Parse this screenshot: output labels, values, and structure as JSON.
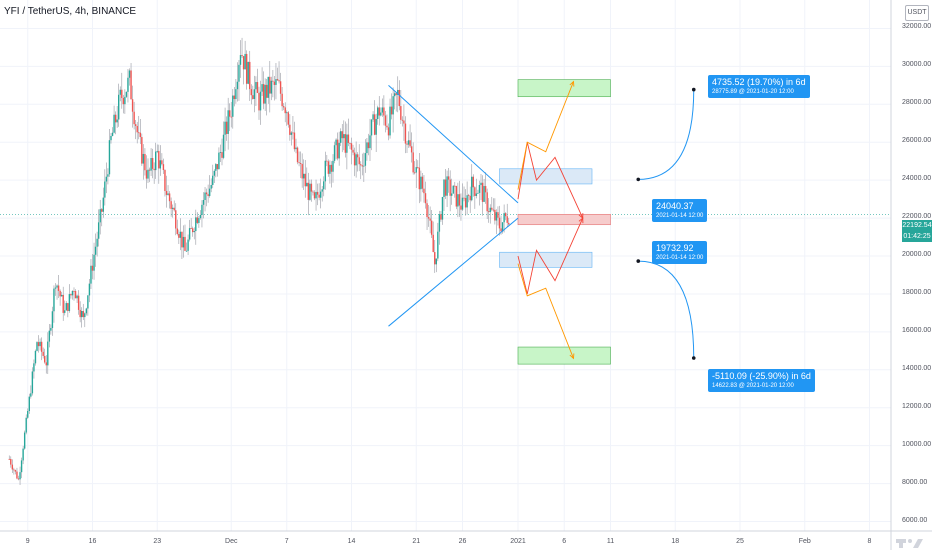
{
  "header": {
    "symbol_line": "YFI / TetherUS, 4h, BINANCE"
  },
  "axis": {
    "currency_label": "USDT"
  },
  "price_label": {
    "value": "22192.54",
    "countdown": "01:42:25",
    "color": "#26a69a"
  },
  "annotations": {
    "upper_measure": {
      "line1": "4735.52 (19.70%) in 6d",
      "line2": "28775.89 @ 2021-01-20  12:00"
    },
    "upper_start": {
      "line1": "24040.37",
      "line2": "2021-01-14 12:00"
    },
    "lower_start": {
      "line1": "19732.92",
      "line2": "2021-01-14 12:00"
    },
    "lower_measure": {
      "line1": "-5110.09 (-25.90%) in 6d",
      "line2": "14622.83 @ 2021-01-20  12:00"
    }
  },
  "colors": {
    "up": "#26a69a",
    "down": "#ef5350",
    "wedge": "#2196f3",
    "annotation": "#2196f3"
  },
  "chart_data": {
    "type": "candlestick",
    "title": "YFI / TetherUS, 4h, BINANCE",
    "ylim": [
      5500,
      33500
    ],
    "y_ticks": [
      6000,
      8000,
      10000,
      12000,
      14000,
      16000,
      18000,
      20000,
      22000,
      24000,
      26000,
      28000,
      30000,
      32000
    ],
    "y_tick_labels": [
      "6000.00",
      "8000.00",
      "10000.00",
      "12000.00",
      "14000.00",
      "16000.00",
      "18000.00",
      "20000.00",
      "22000.00",
      "24000.00",
      "26000.00",
      "28000.00",
      "30000.00",
      "32000.00"
    ],
    "x_ticks": [
      "9",
      "16",
      "23",
      "Dec",
      "7",
      "14",
      "21",
      "26",
      "2021",
      "6",
      "11",
      "18",
      "25",
      "Feb",
      "8"
    ],
    "x_tick_dates": [
      "2020-11-09",
      "2020-11-16",
      "2020-11-23",
      "2020-12-01",
      "2020-12-07",
      "2020-12-14",
      "2020-12-21",
      "2020-12-26",
      "2021-01-01",
      "2021-01-06",
      "2021-01-11",
      "2021-01-18",
      "2021-01-25",
      "2021-02-01",
      "2021-02-08"
    ],
    "price_path": [
      [
        "2020-11-07",
        9300
      ],
      [
        "2020-11-08",
        8200
      ],
      [
        "2020-11-09",
        11800
      ],
      [
        "2020-11-10",
        15500
      ],
      [
        "2020-11-11",
        14400
      ],
      [
        "2020-11-12",
        18800
      ],
      [
        "2020-11-13",
        17000
      ],
      [
        "2020-11-14",
        18400
      ],
      [
        "2020-11-15",
        16600
      ],
      [
        "2020-11-16",
        19600
      ],
      [
        "2020-11-17",
        22400
      ],
      [
        "2020-11-18",
        26100
      ],
      [
        "2020-11-19",
        28300
      ],
      [
        "2020-11-20",
        29200
      ],
      [
        "2020-11-21",
        26000
      ],
      [
        "2020-11-22",
        24200
      ],
      [
        "2020-11-23",
        25400
      ],
      [
        "2020-11-24",
        23400
      ],
      [
        "2020-11-25",
        22000
      ],
      [
        "2020-11-26",
        20200
      ],
      [
        "2020-11-27",
        21800
      ],
      [
        "2020-11-28",
        23000
      ],
      [
        "2020-11-29",
        23900
      ],
      [
        "2020-11-30",
        25800
      ],
      [
        "2020-12-01",
        27800
      ],
      [
        "2020-12-02",
        31000
      ],
      [
        "2020-12-03",
        29200
      ],
      [
        "2020-12-04",
        28200
      ],
      [
        "2020-12-05",
        28800
      ],
      [
        "2020-12-06",
        29000
      ],
      [
        "2020-12-07",
        27800
      ],
      [
        "2020-12-08",
        25200
      ],
      [
        "2020-12-09",
        23800
      ],
      [
        "2020-12-10",
        22700
      ],
      [
        "2020-12-11",
        24400
      ],
      [
        "2020-12-12",
        25200
      ],
      [
        "2020-12-13",
        26200
      ],
      [
        "2020-12-14",
        25500
      ],
      [
        "2020-12-15",
        24700
      ],
      [
        "2020-12-16",
        26400
      ],
      [
        "2020-12-17",
        27700
      ],
      [
        "2020-12-18",
        27000
      ],
      [
        "2020-12-19",
        28500
      ],
      [
        "2020-12-20",
        26200
      ],
      [
        "2020-12-21",
        24400
      ],
      [
        "2020-12-22",
        23200
      ],
      [
        "2020-12-23",
        19600
      ],
      [
        "2020-12-24",
        23800
      ],
      [
        "2020-12-25",
        23300
      ],
      [
        "2020-12-26",
        22600
      ],
      [
        "2020-12-27",
        23700
      ],
      [
        "2020-12-28",
        23500
      ],
      [
        "2020-12-29",
        22400
      ],
      [
        "2020-12-30",
        21600
      ],
      [
        "2020-12-31",
        22200
      ]
    ],
    "wedge_lines": [
      {
        "from": [
          "2020-12-18",
          29000
        ],
        "to": [
          "2021-01-01",
          22800
        ]
      },
      {
        "from": [
          "2020-12-18",
          16300
        ],
        "to": [
          "2021-01-01",
          22000
        ]
      }
    ],
    "zones": [
      {
        "from": "2021-01-01",
        "to": "2021-01-11",
        "low": 28400,
        "high": 29300,
        "color": "#c8f5c8"
      },
      {
        "from": "2020-12-30",
        "to": "2021-01-09",
        "low": 23800,
        "high": 24600,
        "color": "#dbe9f7"
      },
      {
        "from": "2021-01-01",
        "to": "2021-01-11",
        "low": 21650,
        "high": 22200,
        "color": "#f6cccc"
      },
      {
        "from": "2020-12-30",
        "to": "2021-01-09",
        "low": 19400,
        "high": 20200,
        "color": "#dbe9f7"
      },
      {
        "from": "2021-01-01",
        "to": "2021-01-11",
        "low": 14300,
        "high": 15200,
        "color": "#c8f5c8"
      }
    ],
    "projections": [
      {
        "color": "#f44336",
        "points": [
          [
            "2021-01-01",
            23000
          ],
          [
            "2021-01-02",
            26000
          ],
          [
            "2021-01-03",
            24000
          ],
          [
            "2021-01-05",
            25200
          ],
          [
            "2021-01-08",
            22000
          ]
        ]
      },
      {
        "color": "#f44336",
        "points": [
          [
            "2021-01-01",
            20000
          ],
          [
            "2021-01-02",
            18000
          ],
          [
            "2021-01-03",
            20300
          ],
          [
            "2021-01-05",
            18700
          ],
          [
            "2021-01-08",
            22000
          ]
        ]
      },
      {
        "color": "#ff9800",
        "points": [
          [
            "2021-01-01",
            23500
          ],
          [
            "2021-01-02",
            26000
          ],
          [
            "2021-01-04",
            25500
          ],
          [
            "2021-01-07",
            29200
          ]
        ]
      },
      {
        "color": "#ff9800",
        "points": [
          [
            "2021-01-01",
            19600
          ],
          [
            "2021-01-02",
            17900
          ],
          [
            "2021-01-04",
            18300
          ],
          [
            "2021-01-07",
            14600
          ]
        ]
      }
    ],
    "measure_points": [
      {
        "from": [
          "2021-01-14",
          24040.37
        ],
        "to": [
          "2021-01-20",
          28775.89
        ]
      },
      {
        "from": [
          "2021-01-14",
          19732.92
        ],
        "to": [
          "2021-01-20",
          14622.83
        ]
      }
    ],
    "last_price": 22192.54,
    "grid": true
  }
}
